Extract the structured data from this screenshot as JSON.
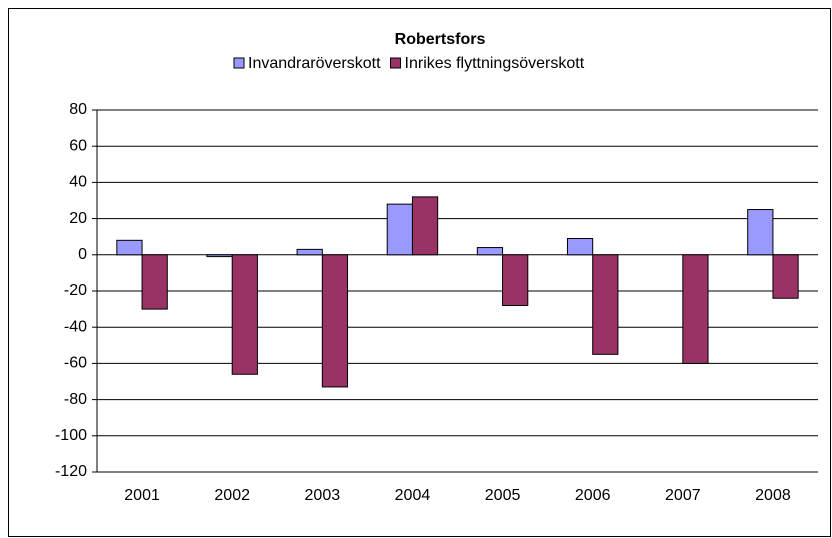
{
  "chart_data": {
    "type": "bar",
    "title": "Robertsfors",
    "categories": [
      "2001",
      "2002",
      "2003",
      "2004",
      "2005",
      "2006",
      "2007",
      "2008"
    ],
    "series": [
      {
        "name": "Invandraröverskott",
        "color": "#9999ff",
        "values": [
          8,
          -1,
          3,
          28,
          4,
          9,
          0,
          25
        ]
      },
      {
        "name": "Inrikes flyttningsöverskott",
        "color": "#993366",
        "values": [
          -30,
          -66,
          -73,
          32,
          -28,
          -55,
          -60,
          -24
        ]
      }
    ],
    "ylim": [
      -120,
      80
    ],
    "yticks": [
      -120,
      -100,
      -80,
      -60,
      -40,
      -20,
      0,
      20,
      40,
      60,
      80
    ],
    "grid": true,
    "legend": "top"
  }
}
